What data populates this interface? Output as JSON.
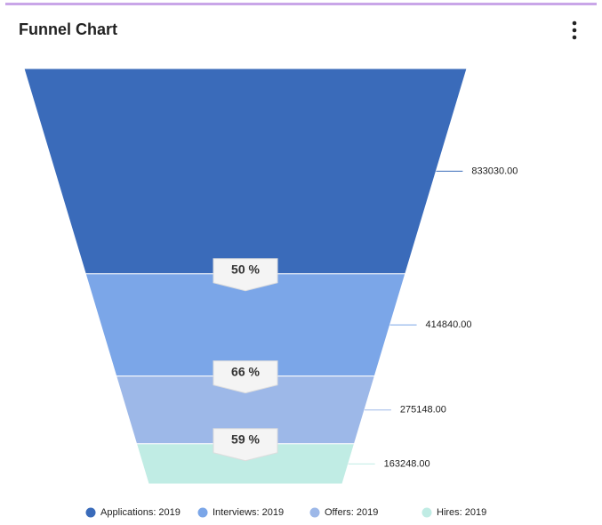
{
  "chart_data": {
    "type": "funnel",
    "title": "Funnel Chart",
    "categories": [
      "Applications: 2019",
      "Interviews: 2019",
      "Offers: 2019",
      "Hires: 2019"
    ],
    "values": [
      833030,
      414840,
      275148,
      163248
    ],
    "value_labels": [
      "833030.00",
      "414840.00",
      "275148.00",
      "163248.00"
    ],
    "colors": [
      "#3a6bba",
      "#7ba6e8",
      "#9db8e8",
      "#c0ece4"
    ],
    "conversions": {
      "values": [
        50,
        66,
        59
      ],
      "value_labels": [
        "50 %",
        "66 %",
        "59 %"
      ]
    },
    "legend": "bottom"
  }
}
